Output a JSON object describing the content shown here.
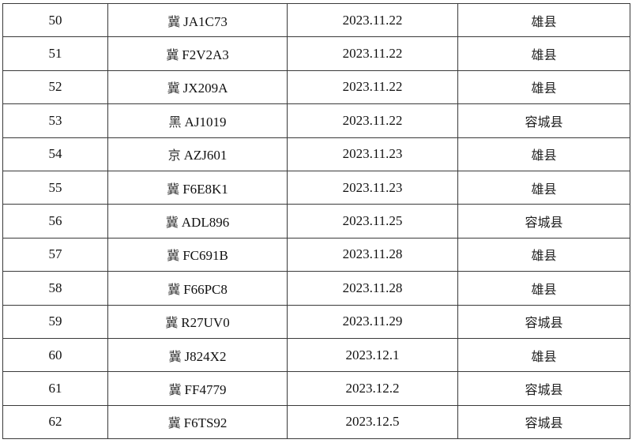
{
  "rows": [
    {
      "no": "50",
      "prov": "冀",
      "plate": "JA1C73",
      "date": "2023.11.22",
      "county": "雄县"
    },
    {
      "no": "51",
      "prov": "冀",
      "plate": "F2V2A3",
      "date": "2023.11.22",
      "county": "雄县"
    },
    {
      "no": "52",
      "prov": "冀",
      "plate": "JX209A",
      "date": "2023.11.22",
      "county": "雄县"
    },
    {
      "no": "53",
      "prov": "黑",
      "plate": "AJ1019",
      "date": "2023.11.22",
      "county": "容城县"
    },
    {
      "no": "54",
      "prov": "京",
      "plate": "AZJ601",
      "date": "2023.11.23",
      "county": "雄县"
    },
    {
      "no": "55",
      "prov": "冀",
      "plate": "F6E8K1",
      "date": "2023.11.23",
      "county": "雄县"
    },
    {
      "no": "56",
      "prov": "冀",
      "plate": "ADL896",
      "date": "2023.11.25",
      "county": "容城县"
    },
    {
      "no": "57",
      "prov": "冀",
      "plate": "FC691B",
      "date": "2023.11.28",
      "county": "雄县"
    },
    {
      "no": "58",
      "prov": "冀",
      "plate": "F66PC8",
      "date": "2023.11.28",
      "county": "雄县"
    },
    {
      "no": "59",
      "prov": "冀",
      "plate": "R27UV0",
      "date": "2023.11.29",
      "county": "容城县"
    },
    {
      "no": "60",
      "prov": "冀",
      "plate": "J824X2",
      "date": "2023.12.1",
      "county": "雄县"
    },
    {
      "no": "61",
      "prov": "冀",
      "plate": "FF4779",
      "date": "2023.12.2",
      "county": "容城县"
    },
    {
      "no": "62",
      "prov": "冀",
      "plate": "F6TS92",
      "date": "2023.12.5",
      "county": "容城县"
    }
  ]
}
